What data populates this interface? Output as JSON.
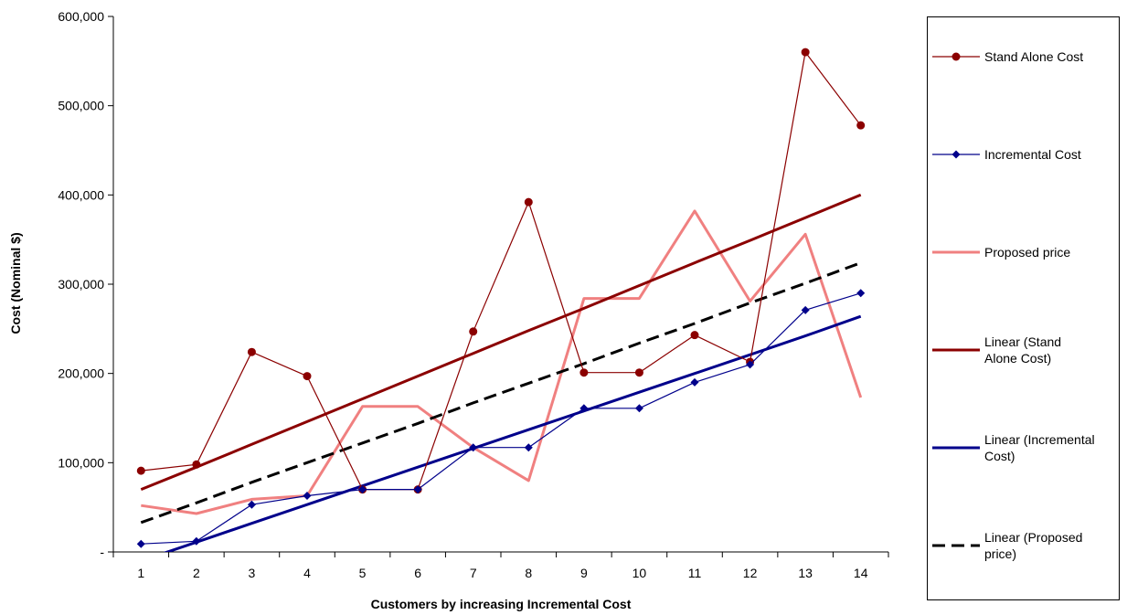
{
  "chart_data": {
    "type": "line",
    "xlabel": "Customers by increasing Incremental Cost",
    "ylabel": "Cost (Nominal $)",
    "categories": [
      "1",
      "2",
      "3",
      "4",
      "5",
      "6",
      "7",
      "8",
      "9",
      "10",
      "11",
      "12",
      "13",
      "14"
    ],
    "ylim": [
      0,
      600000
    ],
    "yticks": [
      0,
      100000,
      200000,
      300000,
      400000,
      500000,
      600000
    ],
    "ytick_labels": [
      "-",
      "100,000",
      "200,000",
      "300,000",
      "400,000",
      "500,000",
      "600,000"
    ],
    "grid": false,
    "legend_position": "right",
    "series": [
      {
        "name": "Stand Alone Cost",
        "color": "#8b0000",
        "marker": "circle",
        "style": "thin",
        "values": [
          91000,
          98000,
          224000,
          197000,
          70000,
          70000,
          247000,
          392000,
          201000,
          201000,
          243000,
          213000,
          560000,
          478000
        ]
      },
      {
        "name": "Incremental Cost",
        "color": "#00008b",
        "marker": "diamond",
        "style": "thin",
        "values": [
          9000,
          12000,
          53000,
          63000,
          70000,
          70000,
          117000,
          117000,
          161000,
          161000,
          190000,
          210000,
          271000,
          290000
        ]
      },
      {
        "name": "Proposed price",
        "color": "#f08080",
        "marker": "none",
        "style": "thick",
        "values": [
          52000,
          43000,
          59000,
          63000,
          163000,
          163000,
          117000,
          80000,
          284000,
          284000,
          382000,
          281000,
          356000,
          173000
        ]
      },
      {
        "name": "Linear (Stand Alone Cost)",
        "color": "#8b0000",
        "marker": "none",
        "style": "trend",
        "values": [
          70000,
          95000,
          120500,
          146000,
          171500,
          197000,
          222500,
          248000,
          273000,
          298500,
          324000,
          349000,
          374500,
          400000
        ]
      },
      {
        "name": "Linear (Incremental Cost)",
        "color": "#00008b",
        "marker": "none",
        "style": "trend",
        "values": [
          -10000,
          11000,
          32000,
          53000,
          74000,
          95000,
          116000,
          137000,
          158000,
          179000,
          200000,
          221000,
          242000,
          264000
        ]
      },
      {
        "name": "Linear (Proposed price)",
        "color": "#000000",
        "marker": "none",
        "style": "dashed",
        "values": [
          33000,
          55000,
          78000,
          100000,
          122000,
          144000,
          167000,
          189000,
          211000,
          234000,
          256000,
          279000,
          301000,
          324000
        ]
      }
    ]
  }
}
